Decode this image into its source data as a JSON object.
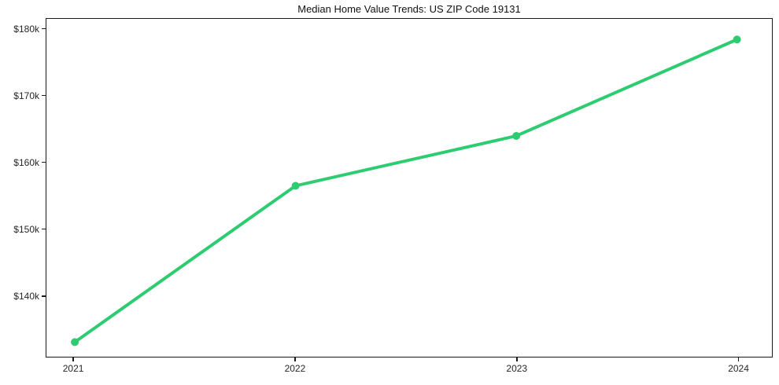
{
  "title": "Median Home Value Trends: US ZIP Code 19131",
  "colors": {
    "line": "#2ecc71",
    "axis": "#1a1a1a",
    "tick_text": "#262626",
    "background": "#ffffff"
  },
  "chart_data": {
    "type": "line",
    "title": "Median Home Value Trends: US ZIP Code 19131",
    "series_name": "Median Home Value",
    "x": [
      2021,
      2022,
      2023,
      2024
    ],
    "values": [
      133000,
      156500,
      164000,
      178500
    ],
    "xlabel": "",
    "ylabel": "",
    "ylim": [
      130800,
      181600
    ],
    "yticks": [
      140000,
      150000,
      160000,
      170000,
      180000
    ],
    "ytick_labels": [
      "$140k",
      "$150k",
      "$160k",
      "$170k",
      "$180k"
    ],
    "xtick_labels": [
      "2021",
      "2022",
      "2023",
      "2024"
    ],
    "grid": false,
    "legend": false,
    "marker": "circle",
    "marker_radius": 5,
    "line_width": 4
  }
}
